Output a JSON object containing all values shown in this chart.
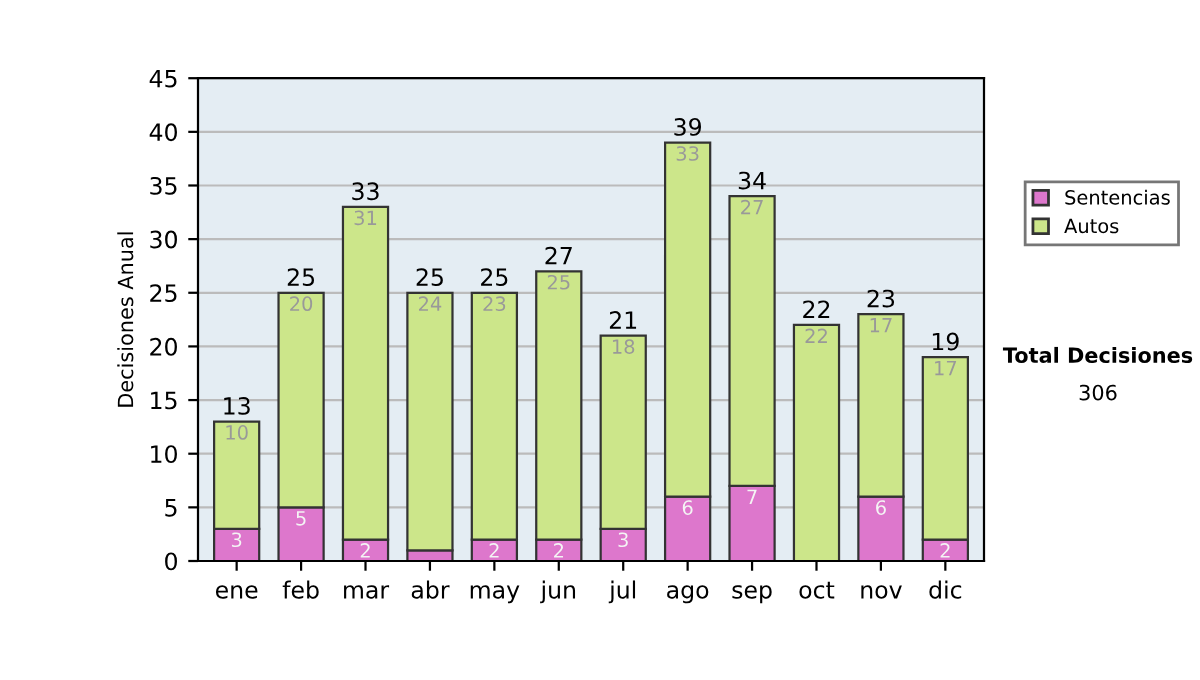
{
  "chart_data": {
    "type": "bar",
    "stacked": true,
    "ylabel": "Decisiones Anual",
    "categories": [
      "ene",
      "feb",
      "mar",
      "abr",
      "may",
      "jun",
      "jul",
      "ago",
      "sep",
      "oct",
      "nov",
      "dic"
    ],
    "series": [
      {
        "name": "Sentencias",
        "color": "#dd77cc",
        "values": [
          3,
          5,
          2,
          1,
          2,
          2,
          3,
          6,
          7,
          0,
          6,
          2
        ],
        "value_labels": [
          "3",
          "5",
          "2",
          null,
          "2",
          "2",
          "3",
          "6",
          "7",
          null,
          "6",
          "2"
        ]
      },
      {
        "name": "Autos",
        "color": "#cce68a",
        "values": [
          10,
          20,
          31,
          24,
          23,
          25,
          18,
          33,
          27,
          22,
          17,
          17
        ],
        "value_labels": [
          "10",
          "20",
          "31",
          "24",
          "23",
          "25",
          "18",
          "33",
          "27",
          "22",
          "17",
          "17"
        ]
      }
    ],
    "totals": [
      "13",
      "25",
      "33",
      "25",
      "25",
      "27",
      "21",
      "39",
      "34",
      "22",
      "23",
      "19"
    ],
    "ylim": [
      0,
      45
    ],
    "yticks": [
      0,
      5,
      10,
      15,
      20,
      25,
      30,
      35,
      40,
      45
    ],
    "grid": "y",
    "legend": "right",
    "annotations": [
      "Total Decisiones",
      "306"
    ]
  }
}
